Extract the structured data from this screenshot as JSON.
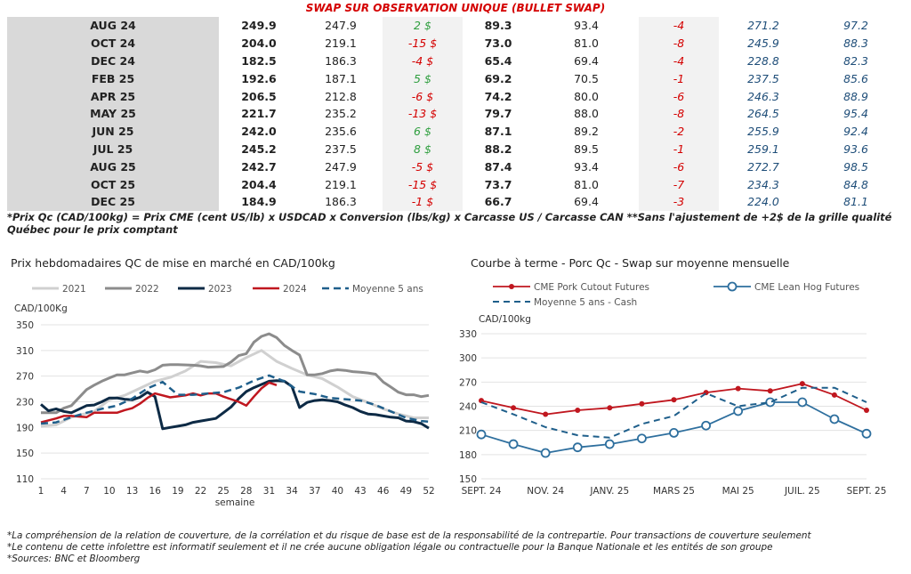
{
  "table": {
    "title": "SWAP SUR OBSERVATION UNIQUE (BULLET SWAP)",
    "rows": [
      [
        "AUG 24",
        "249.9",
        "247.9",
        "2 $",
        "89.3",
        "93.4",
        "-4",
        "271.2",
        "97.2"
      ],
      [
        "OCT 24",
        "204.0",
        "219.1",
        "-15 $",
        "73.0",
        "81.0",
        "-8",
        "245.9",
        "88.3"
      ],
      [
        "DEC 24",
        "182.5",
        "186.3",
        "-4 $",
        "65.4",
        "69.4",
        "-4",
        "228.8",
        "82.3"
      ],
      [
        "FEB 25",
        "192.6",
        "187.1",
        "5 $",
        "69.2",
        "70.5",
        "-1",
        "237.5",
        "85.6"
      ],
      [
        "APR 25",
        "206.5",
        "212.8",
        "-6 $",
        "74.2",
        "80.0",
        "-6",
        "246.3",
        "88.9"
      ],
      [
        "MAY 25",
        "221.7",
        "235.2",
        "-13 $",
        "79.7",
        "88.0",
        "-8",
        "264.5",
        "95.4"
      ],
      [
        "JUN 25",
        "242.0",
        "235.6",
        "6 $",
        "87.1",
        "89.2",
        "-2",
        "255.9",
        "92.4"
      ],
      [
        "JUL 25",
        "245.2",
        "237.5",
        "8 $",
        "88.2",
        "89.5",
        "-1",
        "259.1",
        "93.6"
      ],
      [
        "AUG 25",
        "242.7",
        "247.9",
        "-5 $",
        "87.4",
        "93.4",
        "-6",
        "272.7",
        "98.5"
      ],
      [
        "OCT 25",
        "204.4",
        "219.1",
        "-15 $",
        "73.7",
        "81.0",
        "-7",
        "234.3",
        "84.8"
      ],
      [
        "DEC 25",
        "184.9",
        "186.3",
        "-1 $",
        "66.7",
        "69.4",
        "-3",
        "224.0",
        "81.1"
      ]
    ],
    "note": "*Prix Qc (CAD/100kg) = Prix CME (cent US/lb) x USDCAD x Conversion (lbs/kg) x Carcasse US / Carcasse CAN **Sans l'ajustement de +2$ de la grille qualité Québec pour le prix comptant"
  },
  "footer": [
    "*La compréhension de la relation de couverture, de la corrélation et du risque de base est de la responsabilité de la contrepartie. Pour transactions de couverture seulement",
    "*Le contenu de cette infolettre est informatif seulement et il ne crée aucune obligation légale ou contractuelle pour la Banque Nationale et les entités de son groupe",
    "*Sources: BNC et Bloomberg"
  ],
  "colors": {
    "c2021": "#d0d0d0",
    "c2022": "#8c8c8c",
    "c2023": "#0d2a45",
    "c2024": "#c0171f",
    "avg": "#1f5f8b",
    "red": "#c0171f",
    "blue": "#2e6f9e"
  },
  "chart_data": [
    {
      "type": "line",
      "title": "Prix hebdomadaires QC de mise en marché en CAD/100kg",
      "ylabel": "CAD/100Kg",
      "xlabel": "semaine",
      "ylim": [
        110,
        350
      ],
      "yticks": [
        110,
        150,
        190,
        230,
        270,
        310,
        350
      ],
      "xlim": [
        1,
        52
      ],
      "xticks": [
        1,
        4,
        7,
        10,
        13,
        16,
        19,
        22,
        25,
        28,
        31,
        34,
        37,
        40,
        43,
        46,
        49,
        52
      ],
      "legend": "top",
      "series": [
        {
          "name": "2021",
          "x": [
            1,
            3,
            5,
            8,
            10,
            12,
            14,
            16,
            18,
            20,
            22,
            24,
            26,
            28,
            30,
            32,
            34,
            36,
            38,
            40,
            42,
            44,
            46,
            48,
            50,
            52
          ],
          "values": [
            192,
            194,
            206,
            215,
            233,
            240,
            251,
            262,
            268,
            278,
            293,
            291,
            286,
            299,
            310,
            293,
            282,
            272,
            266,
            253,
            238,
            229,
            219,
            211,
            205,
            205
          ]
        },
        {
          "name": "2022",
          "x": [
            1,
            3,
            4,
            5,
            7,
            8,
            9,
            10,
            11,
            12,
            14,
            15,
            16,
            17,
            18,
            19,
            21,
            22,
            23,
            25,
            26,
            27,
            28,
            29,
            30,
            31,
            32,
            33,
            34,
            35,
            36,
            37,
            38,
            39,
            40,
            41,
            42,
            43,
            44,
            45,
            46,
            47,
            48,
            49,
            50,
            51,
            52
          ],
          "values": [
            213,
            213,
            220,
            224,
            249,
            256,
            262,
            267,
            272,
            272,
            278,
            276,
            280,
            287,
            288,
            288,
            287,
            286,
            284,
            285,
            292,
            302,
            305,
            323,
            332,
            336,
            330,
            318,
            310,
            303,
            272,
            272,
            274,
            278,
            280,
            279,
            277,
            276,
            275,
            273,
            261,
            253,
            245,
            241,
            241,
            238,
            240
          ]
        },
        {
          "name": "2023",
          "x": [
            1,
            2,
            3,
            4,
            5,
            7,
            8,
            9,
            10,
            11,
            12,
            13,
            14,
            15,
            16,
            17,
            18,
            19,
            20,
            21,
            22,
            24,
            26,
            27,
            28,
            29,
            30,
            31,
            32,
            33,
            34,
            35,
            36,
            37,
            38,
            39,
            40,
            41,
            42,
            43,
            44,
            45,
            46,
            47,
            48,
            49,
            50,
            51,
            52
          ],
          "values": [
            226,
            216,
            219,
            215,
            213,
            224,
            225,
            230,
            236,
            236,
            234,
            233,
            237,
            245,
            238,
            188,
            190,
            192,
            194,
            198,
            200,
            204,
            222,
            235,
            246,
            252,
            257,
            262,
            263,
            262,
            254,
            221,
            229,
            232,
            233,
            232,
            230,
            225,
            221,
            215,
            211,
            210,
            208,
            206,
            205,
            200,
            199,
            196,
            189
          ]
        },
        {
          "name": "2024",
          "x": [
            1,
            3,
            4,
            5,
            7,
            8,
            9,
            11,
            12,
            13,
            14,
            15,
            16,
            18,
            20,
            21,
            22,
            23,
            24,
            25,
            27,
            28,
            29,
            30,
            31,
            32
          ],
          "values": [
            198,
            204,
            208,
            208,
            206,
            213,
            213,
            213,
            217,
            220,
            227,
            236,
            243,
            237,
            240,
            243,
            240,
            243,
            243,
            238,
            230,
            224,
            238,
            251,
            260,
            256
          ]
        },
        {
          "name": "Moyenne 5 ans",
          "x": [
            1,
            3,
            5,
            7,
            9,
            11,
            13,
            15,
            17,
            19,
            21,
            23,
            25,
            27,
            29,
            31,
            33,
            35,
            37,
            39,
            41,
            43,
            45,
            47,
            49,
            51,
            52
          ],
          "values": [
            196,
            198,
            206,
            213,
            219,
            224,
            235,
            251,
            261,
            241,
            241,
            243,
            245,
            252,
            263,
            271,
            262,
            246,
            242,
            236,
            234,
            232,
            225,
            215,
            205,
            200,
            199
          ]
        }
      ]
    },
    {
      "type": "line",
      "title": "Courbe à terme - Porc Qc - Swap sur moyenne mensuelle",
      "ylabel": "CAD/100kg",
      "ylim": [
        150,
        330
      ],
      "yticks": [
        150,
        180,
        210,
        240,
        270,
        300,
        330
      ],
      "categories": [
        "SEPT. 24",
        "OCT. 24",
        "NOV. 24",
        "DÉC. 24",
        "JANV. 25",
        "FÉVR. 25",
        "MARS 25",
        "AVR. 25",
        "MAI 25",
        "JUIN 25",
        "JUIL. 25",
        "AOÛT 25",
        "SEPT. 25"
      ],
      "xticks": [
        "SEPT. 24",
        "NOV. 24",
        "JANV. 25",
        "MARS 25",
        "MAI 25",
        "JUIL. 25",
        "SEPT. 25"
      ],
      "legend": "top",
      "series": [
        {
          "name": "CME Pork Cutout Futures",
          "values": [
            247,
            238,
            230,
            235,
            238,
            243,
            248,
            257,
            262,
            259,
            268,
            254,
            235
          ]
        },
        {
          "name": "CME Lean Hog Futures",
          "values": [
            205,
            193,
            182,
            189,
            193,
            200,
            207,
            216,
            234,
            245,
            245,
            224,
            206
          ]
        },
        {
          "name": "Moyenne 5 ans - Cash",
          "values": [
            245,
            230,
            214,
            204,
            201,
            218,
            228,
            256,
            240,
            245,
            263,
            263,
            245
          ]
        }
      ]
    }
  ]
}
